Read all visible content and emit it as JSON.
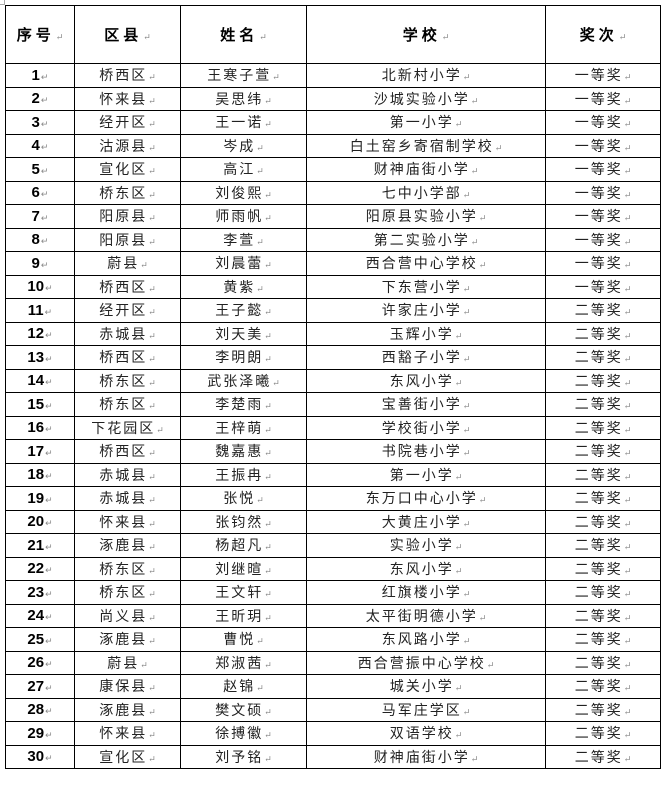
{
  "table": {
    "headers": [
      "序号",
      "区县",
      "姓名",
      "学校",
      "奖次"
    ],
    "rows": [
      [
        "1",
        "桥西区",
        "王寒子萱",
        "北新村小学",
        "一等奖"
      ],
      [
        "2",
        "怀来县",
        "吴思纬",
        "沙城实验小学",
        "一等奖"
      ],
      [
        "3",
        "经开区",
        "王一诺",
        "第一小学",
        "一等奖"
      ],
      [
        "4",
        "沽源县",
        "岑成",
        "白土窑乡寄宿制学校",
        "一等奖"
      ],
      [
        "5",
        "宣化区",
        "高江",
        "财神庙街小学",
        "一等奖"
      ],
      [
        "6",
        "桥东区",
        "刘俊熙",
        "七中小学部",
        "一等奖"
      ],
      [
        "7",
        "阳原县",
        "师雨帆",
        "阳原县实验小学",
        "一等奖"
      ],
      [
        "8",
        "阳原县",
        "李萱",
        "第二实验小学",
        "一等奖"
      ],
      [
        "9",
        "蔚县",
        "刘晨蕾",
        "西合营中心学校",
        "一等奖"
      ],
      [
        "10",
        "桥西区",
        "黄紫",
        "下东营小学",
        "一等奖"
      ],
      [
        "11",
        "经开区",
        "王子懿",
        "许家庄小学",
        "二等奖"
      ],
      [
        "12",
        "赤城县",
        "刘天美",
        "玉辉小学",
        "二等奖"
      ],
      [
        "13",
        "桥西区",
        "李明朗",
        "西豁子小学",
        "二等奖"
      ],
      [
        "14",
        "桥东区",
        "武张泽曦",
        "东风小学",
        "二等奖"
      ],
      [
        "15",
        "桥东区",
        "李楚雨",
        "宝善街小学",
        "二等奖"
      ],
      [
        "16",
        "下花园区",
        "王梓萌",
        "学校街小学",
        "二等奖"
      ],
      [
        "17",
        "桥西区",
        "魏嘉惠",
        "书院巷小学",
        "二等奖"
      ],
      [
        "18",
        "赤城县",
        "王振冉",
        "第一小学",
        "二等奖"
      ],
      [
        "19",
        "赤城县",
        "张悦",
        "东万口中心小学",
        "二等奖"
      ],
      [
        "20",
        "怀来县",
        "张钧然",
        "大黄庄小学",
        "二等奖"
      ],
      [
        "21",
        "涿鹿县",
        "杨超凡",
        "实验小学",
        "二等奖"
      ],
      [
        "22",
        "桥东区",
        "刘继暄",
        "东风小学",
        "二等奖"
      ],
      [
        "23",
        "桥东区",
        "王文轩",
        "红旗楼小学",
        "二等奖"
      ],
      [
        "24",
        "尚义县",
        "王昕玥",
        "太平街明德小学",
        "二等奖"
      ],
      [
        "25",
        "涿鹿县",
        "曹悦",
        "东风路小学",
        "二等奖"
      ],
      [
        "26",
        "蔚县",
        "郑淑茜",
        "西合营振中心学校",
        "二等奖"
      ],
      [
        "27",
        "康保县",
        "赵锦",
        "城关小学",
        "二等奖"
      ],
      [
        "28",
        "涿鹿县",
        "樊文硕",
        "马军庄学区",
        "二等奖"
      ],
      [
        "29",
        "怀来县",
        "徐搏徽",
        "双语学校",
        "二等奖"
      ],
      [
        "30",
        "宣化区",
        "刘予铭",
        "财神庙街小学",
        "二等奖"
      ]
    ]
  }
}
